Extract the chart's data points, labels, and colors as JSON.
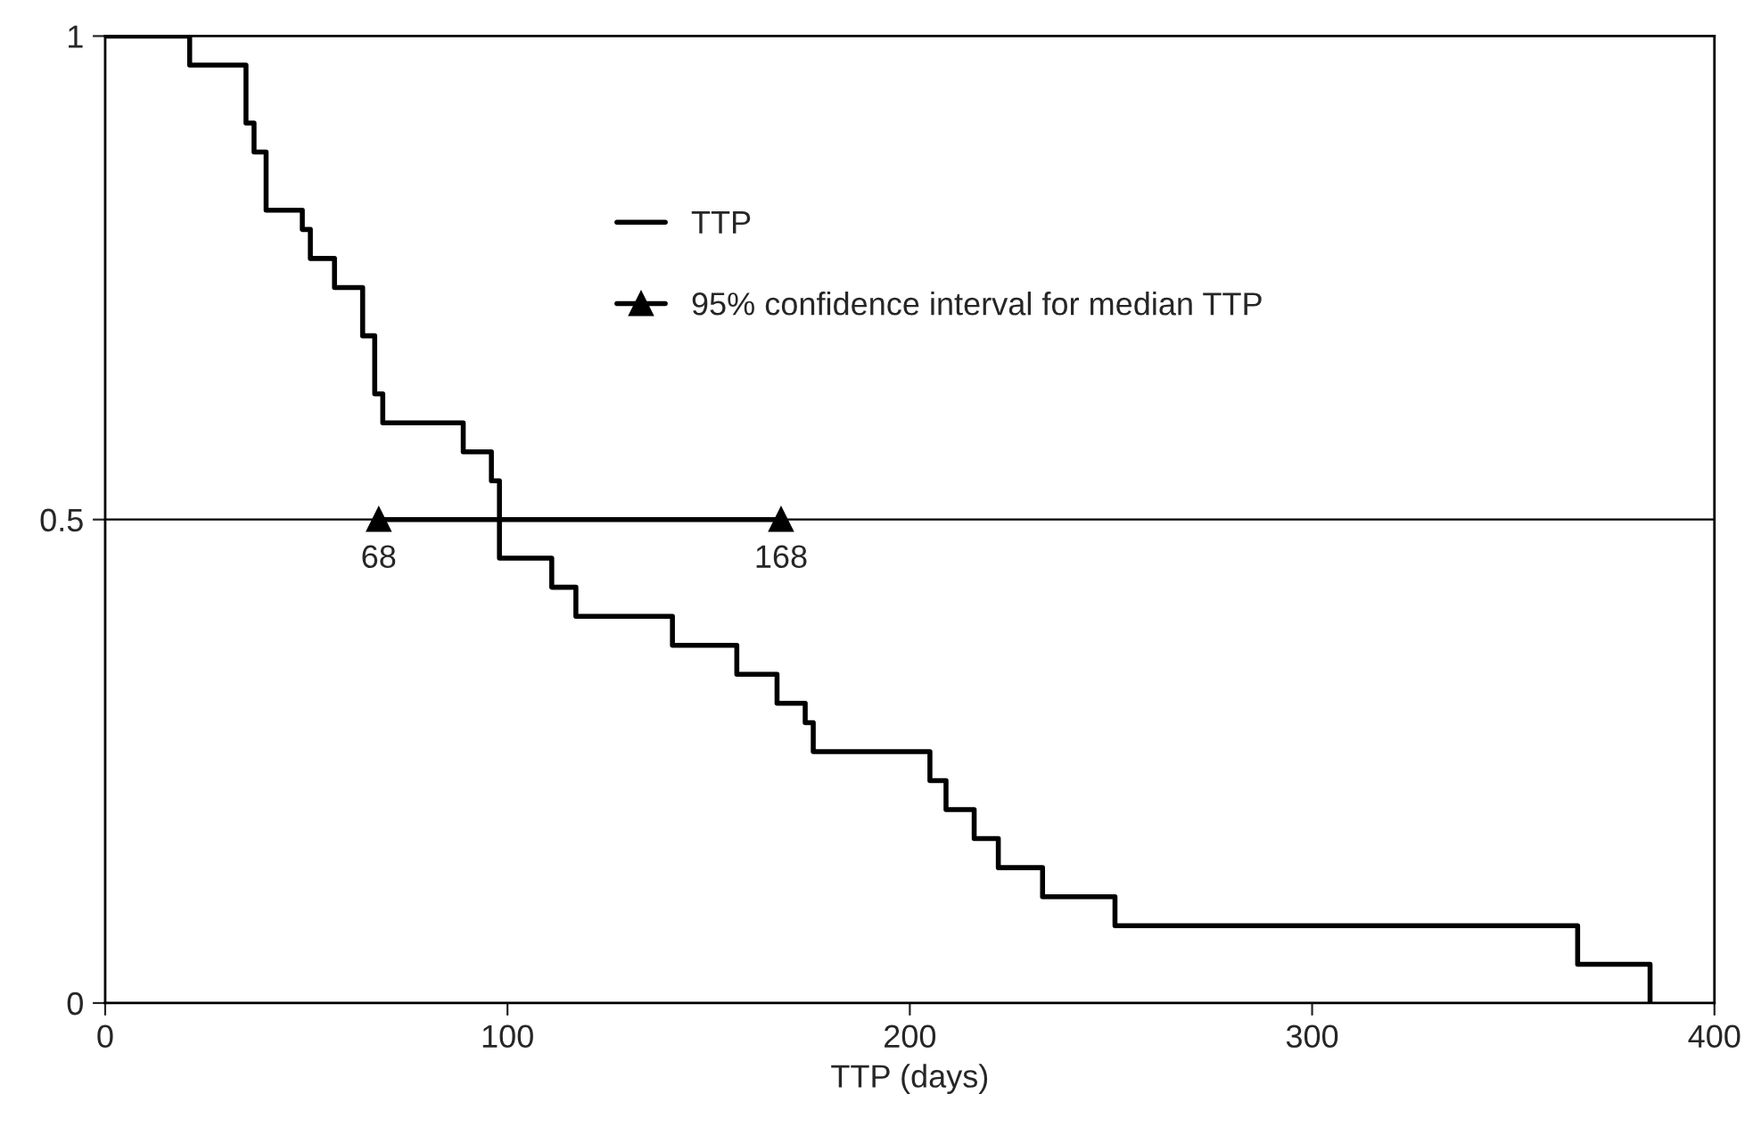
{
  "chart_data": {
    "type": "step",
    "xlabel": "TTP (days)",
    "xlim": [
      0,
      400
    ],
    "xticks": [
      0,
      100,
      200,
      300,
      400
    ],
    "ylim": [
      0,
      1
    ],
    "yticks": [
      0,
      0.5,
      1
    ],
    "ref_lines": [
      {
        "axis": "y",
        "value": 0.5,
        "color": "#000000"
      }
    ],
    "annotations": [
      {
        "text": "68",
        "x": 68,
        "y": 0.5
      },
      {
        "text": "168",
        "x": 168,
        "y": 0.5
      }
    ],
    "legend": "top",
    "series": [
      {
        "name": "TTP",
        "color": "#000000",
        "marker": "none",
        "x": [
          0,
          21,
          35,
          37,
          40,
          49,
          51,
          57,
          64,
          67,
          69,
          89,
          96,
          98,
          111,
          117,
          141,
          157,
          167,
          174,
          176,
          205,
          209,
          216,
          222,
          233,
          251,
          366,
          384
        ],
        "values": [
          1,
          0.97,
          0.91,
          0.88,
          0.82,
          0.8,
          0.77,
          0.74,
          0.69,
          0.63,
          0.6,
          0.57,
          0.54,
          0.46,
          0.43,
          0.4,
          0.37,
          0.34,
          0.31,
          0.29,
          0.26,
          0.23,
          0.2,
          0.17,
          0.14,
          0.11,
          0.08,
          0.04,
          0
        ]
      },
      {
        "name": "95% confidence interval for median TTP",
        "type": "line",
        "color": "#000000",
        "marker": "triangle",
        "x": [
          68,
          168
        ],
        "values": [
          0.5,
          0.5
        ]
      }
    ]
  }
}
